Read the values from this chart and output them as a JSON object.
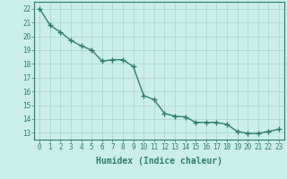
{
  "x": [
    0,
    1,
    2,
    3,
    4,
    5,
    6,
    7,
    8,
    9,
    10,
    11,
    12,
    13,
    14,
    15,
    16,
    17,
    18,
    19,
    20,
    21,
    22,
    23
  ],
  "y": [
    22.0,
    20.8,
    20.3,
    19.7,
    19.3,
    19.0,
    18.2,
    18.3,
    18.3,
    17.8,
    15.7,
    15.4,
    14.4,
    14.2,
    14.15,
    13.75,
    13.75,
    13.75,
    13.6,
    13.1,
    12.95,
    12.95,
    13.1,
    13.25
  ],
  "line_color": "#2e7d6e",
  "marker": "+",
  "marker_size": 4,
  "marker_edge_width": 1.0,
  "bg_color": "#cceee8",
  "grid_color": "#aad4cc",
  "xlabel": "Humidex (Indice chaleur)",
  "xlim": [
    -0.5,
    23.5
  ],
  "ylim": [
    12.5,
    22.5
  ],
  "xticks": [
    0,
    1,
    2,
    3,
    4,
    5,
    6,
    7,
    8,
    9,
    10,
    11,
    12,
    13,
    14,
    15,
    16,
    17,
    18,
    19,
    20,
    21,
    22,
    23
  ],
  "yticks": [
    13,
    14,
    15,
    16,
    17,
    18,
    19,
    20,
    21,
    22
  ],
  "tick_fontsize": 5.5,
  "xlabel_fontsize": 7,
  "line_width": 1.0
}
